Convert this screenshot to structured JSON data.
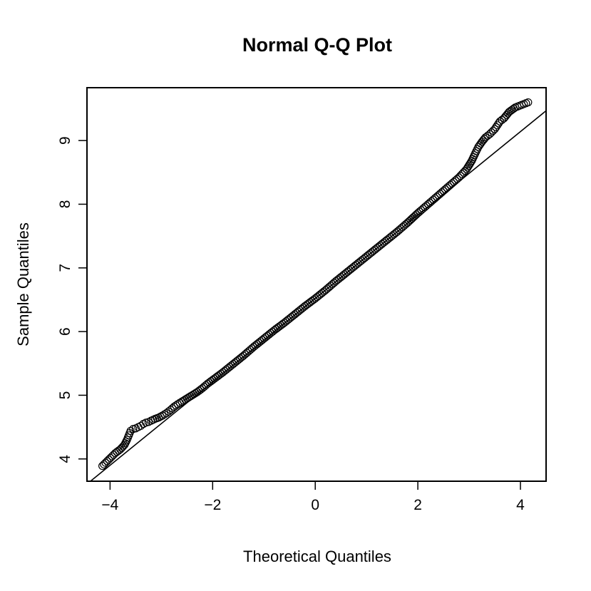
{
  "chart_data": {
    "type": "scatter",
    "title": "Normal Q-Q Plot",
    "xlabel": "Theoretical Quantiles",
    "ylabel": "Sample Quantiles",
    "xlim": [
      -4.45,
      4.5
    ],
    "ylim": [
      3.65,
      9.83
    ],
    "x_ticks": [
      -4,
      -2,
      0,
      2,
      4
    ],
    "x_tick_labels": [
      "−4",
      "−2",
      "0",
      "2",
      "4"
    ],
    "y_ticks": [
      4,
      5,
      6,
      7,
      8,
      9
    ],
    "y_tick_labels": [
      "4",
      "5",
      "6",
      "7",
      "8",
      "9"
    ],
    "grid": false,
    "legend": "none",
    "reference_line": {
      "intercept": 6.52,
      "slope": 0.655
    },
    "points": {
      "x": [
        -4.15,
        -3.9,
        -3.8,
        -3.72,
        -3.67,
        -3.6,
        -3.55,
        -3.5,
        -3.45,
        -3.4,
        -3.35,
        -3.3,
        -3.25,
        -3.2,
        -3.12,
        -3.05,
        -2.98,
        -2.9,
        -2.82,
        -2.75,
        -2.68,
        -2.6,
        -2.5,
        -2.4,
        -2.3,
        -2.2,
        -2.1,
        -2.0,
        -1.8,
        -1.6,
        -1.4,
        -1.2,
        -1.0,
        -0.8,
        -0.6,
        -0.4,
        -0.2,
        0.0,
        0.2,
        0.4,
        0.6,
        0.8,
        1.0,
        1.2,
        1.4,
        1.6,
        1.8,
        2.0,
        2.2,
        2.4,
        2.6,
        2.8,
        2.95,
        3.05,
        3.12,
        3.18,
        3.25,
        3.32,
        3.4,
        3.5,
        3.6,
        3.68,
        3.78,
        3.9,
        4.15
      ],
      "y": [
        3.89,
        4.09,
        4.15,
        4.22,
        4.3,
        4.44,
        4.47,
        4.48,
        4.5,
        4.52,
        4.55,
        4.57,
        4.58,
        4.6,
        4.63,
        4.65,
        4.68,
        4.72,
        4.77,
        4.82,
        4.86,
        4.9,
        4.95,
        5.0,
        5.05,
        5.11,
        5.18,
        5.24,
        5.36,
        5.49,
        5.62,
        5.76,
        5.89,
        6.02,
        6.14,
        6.27,
        6.4,
        6.52,
        6.65,
        6.79,
        6.92,
        7.05,
        7.18,
        7.31,
        7.44,
        7.57,
        7.71,
        7.86,
        8.0,
        8.14,
        8.28,
        8.42,
        8.55,
        8.68,
        8.8,
        8.9,
        8.98,
        9.05,
        9.1,
        9.18,
        9.3,
        9.35,
        9.45,
        9.52,
        9.6
      ]
    }
  }
}
